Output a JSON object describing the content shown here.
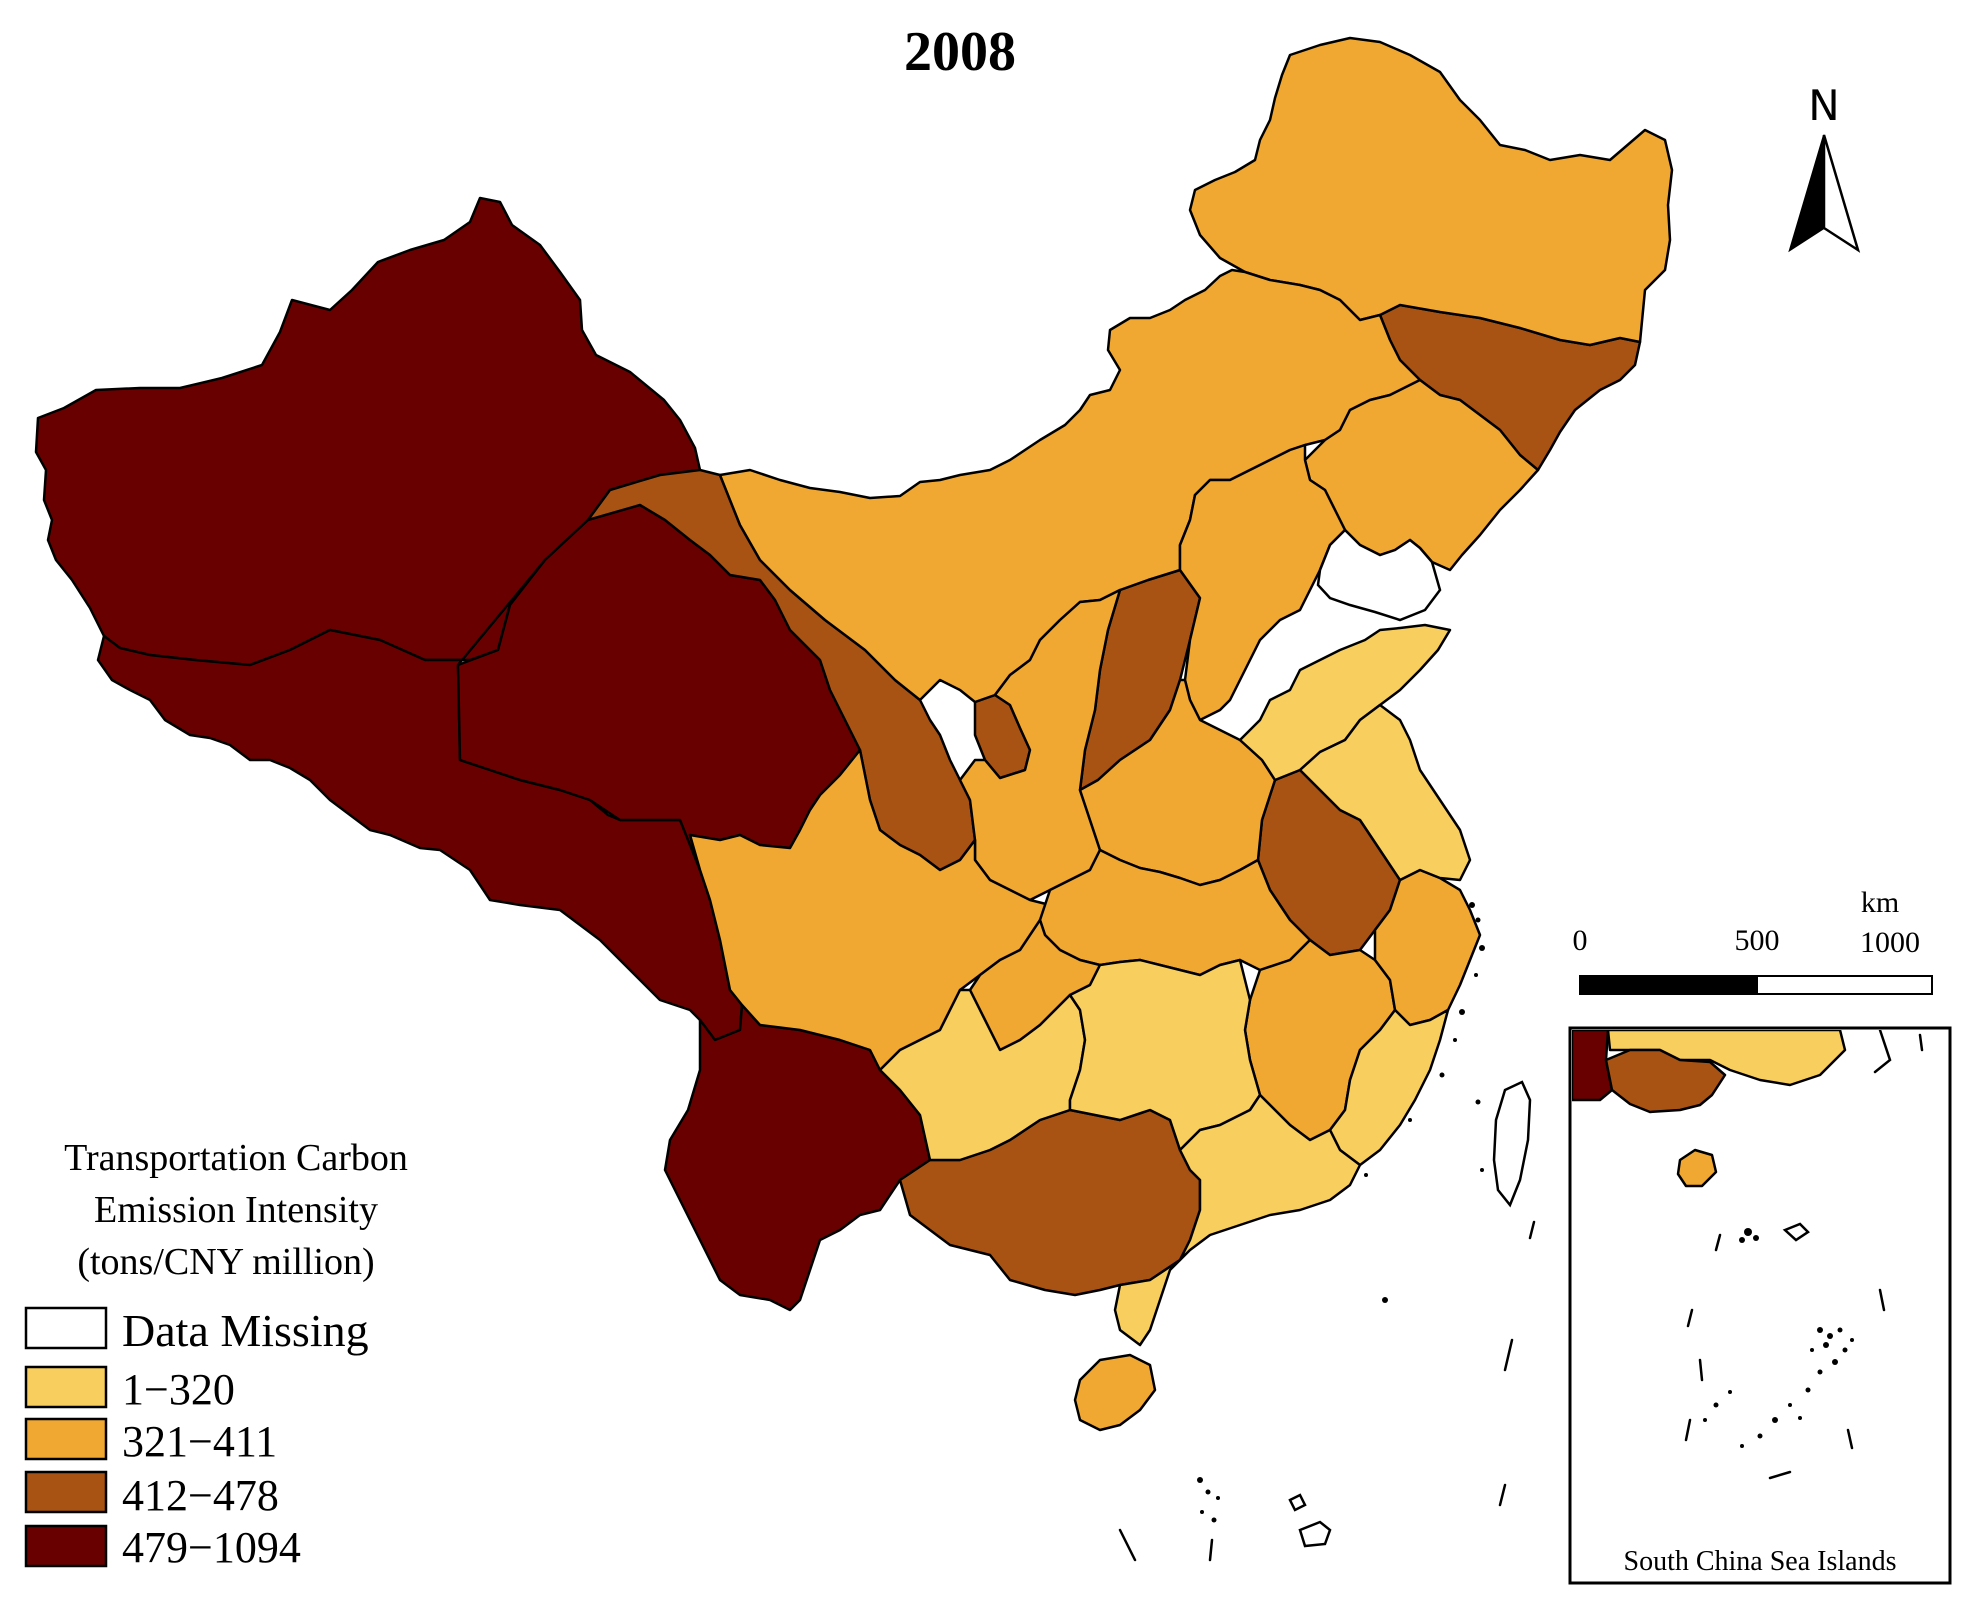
{
  "map": {
    "title": "2008",
    "north_label": "N",
    "scale_bar": {
      "unit": "km",
      "labels": [
        "0",
        "500",
        "1000"
      ]
    },
    "inset_label": "South China Sea Islands",
    "legend": {
      "title_lines": [
        "Transportation Carbon",
        "Emission Intensity",
        "(tons/CNY million)"
      ],
      "classes": [
        {
          "label": "Data Missing",
          "color": "#ffffff"
        },
        {
          "label": "1−320",
          "color": "#f8cf5e"
        },
        {
          "label": "321−411",
          "color": "#f0a832"
        },
        {
          "label": "412−478",
          "color": "#a85314"
        },
        {
          "label": "479−1094",
          "color": "#680000"
        }
      ]
    },
    "provinces": [
      {
        "name": "Xinjiang",
        "class": 4
      },
      {
        "name": "Tibet",
        "class": 4
      },
      {
        "name": "Qinghai",
        "class": 4
      },
      {
        "name": "Yunnan",
        "class": 4
      },
      {
        "name": "Gansu",
        "class": 3
      },
      {
        "name": "Ningxia",
        "class": 3
      },
      {
        "name": "Shanxi",
        "class": 3
      },
      {
        "name": "Anhui",
        "class": 3
      },
      {
        "name": "Guangxi",
        "class": 3
      },
      {
        "name": "Jilin",
        "class": 3
      },
      {
        "name": "Heilongjiang",
        "class": 2
      },
      {
        "name": "Inner Mongolia",
        "class": 2
      },
      {
        "name": "Liaoning",
        "class": 2
      },
      {
        "name": "Hebei",
        "class": 2
      },
      {
        "name": "Shaanxi",
        "class": 2
      },
      {
        "name": "Sichuan",
        "class": 2
      },
      {
        "name": "Henan",
        "class": 2
      },
      {
        "name": "Hubei",
        "class": 2
      },
      {
        "name": "Jiangxi",
        "class": 2
      },
      {
        "name": "Zhejiang",
        "class": 2
      },
      {
        "name": "Chongqing",
        "class": 2
      },
      {
        "name": "Hainan",
        "class": 2
      },
      {
        "name": "Shandong",
        "class": 1
      },
      {
        "name": "Jiangsu",
        "class": 1
      },
      {
        "name": "Guizhou",
        "class": 1
      },
      {
        "name": "Hunan",
        "class": 1
      },
      {
        "name": "Fujian",
        "class": 1
      },
      {
        "name": "Guangdong",
        "class": 1
      }
    ]
  }
}
